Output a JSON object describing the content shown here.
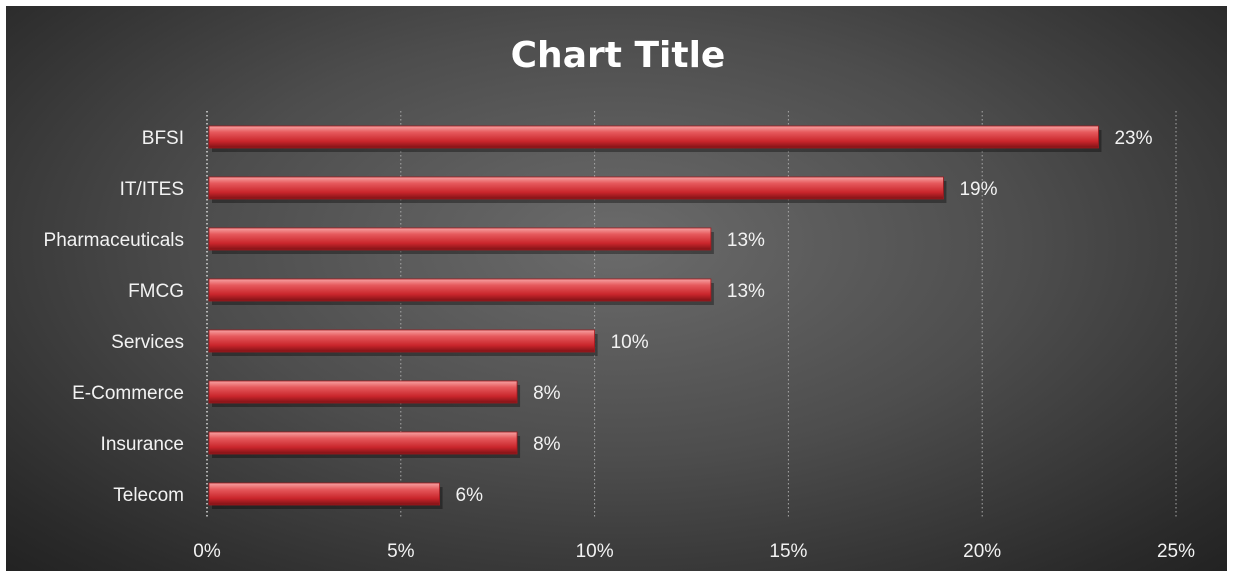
{
  "chart_data": {
    "type": "bar",
    "orientation": "horizontal",
    "title": "Chart Title",
    "categories": [
      "BFSI",
      "IT/ITES",
      "Pharmaceuticals",
      "FMCG",
      "Services",
      "E-Commerce",
      "Insurance",
      "Telecom"
    ],
    "values": [
      23,
      19,
      13,
      13,
      10,
      8,
      8,
      6
    ],
    "data_labels": [
      "23%",
      "19%",
      "13%",
      "13%",
      "10%",
      "8%",
      "8%",
      "6%"
    ],
    "x_ticks": [
      0,
      5,
      10,
      15,
      20,
      25
    ],
    "x_tick_labels": [
      "0%",
      "5%",
      "10%",
      "15%",
      "20%",
      "25%"
    ],
    "xlim": [
      0,
      25
    ],
    "xlabel": "",
    "ylabel": "",
    "grid": "vertical dotted",
    "legend": "none",
    "colors": {
      "bar": "#e0484d",
      "background": "#4a4a4a",
      "text": "#f2f2f2",
      "grid": "#a8a8a8"
    }
  }
}
